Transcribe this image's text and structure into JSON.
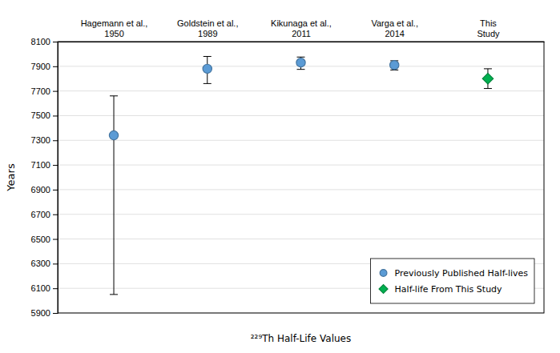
{
  "chart_data": {
    "type": "scatter",
    "categories": [
      "Hagemann et al.,\n1950",
      "Goldstein et al.,\n1989",
      "Kikunaga et al.,\n2011",
      "Varga et al.,\n2014",
      "This\nStudy"
    ],
    "series": [
      {
        "name": "Previously Published Half-lives",
        "color": "#5b9bd5",
        "marker": "circle",
        "values": [
          7340,
          7880,
          7930,
          7910,
          null
        ],
        "error_upper": [
          320,
          100,
          45,
          35,
          null
        ],
        "error_lower": [
          1290,
          120,
          55,
          40,
          null
        ]
      },
      {
        "name": "Half-life From This Study",
        "color": "#00b050",
        "marker": "diamond",
        "values": [
          null,
          null,
          null,
          null,
          7800
        ],
        "error_upper": [
          null,
          null,
          null,
          null,
          80
        ],
        "error_lower": [
          null,
          null,
          null,
          null,
          80
        ]
      }
    ],
    "ylabel": "Years",
    "xlabel": "²²⁹Th Half-Life Values",
    "ylim": [
      5900,
      8100
    ],
    "yticks": [
      5900,
      6100,
      6300,
      6500,
      6700,
      6900,
      7100,
      7300,
      7500,
      7700,
      7900,
      8100
    ],
    "grid": true,
    "legend": "lower right"
  }
}
